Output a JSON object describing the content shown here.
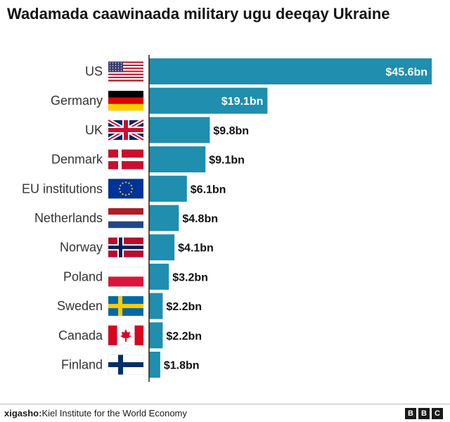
{
  "title": "Wadamada caawinaada military ugu deeqay Ukraine",
  "source": {
    "label": "xigasho:",
    "text": "Kiel Institute for the World Economy"
  },
  "logo": [
    "B",
    "B",
    "C"
  ],
  "colors": {
    "bar": "#1f8eaf",
    "label_inside": "#ffffff",
    "label_outside": "#111111",
    "axis": "#222222"
  },
  "chart_data": {
    "type": "bar",
    "orientation": "horizontal",
    "categories": [
      "US",
      "Germany",
      "UK",
      "Denmark",
      "EU institutions",
      "Netherlands",
      "Norway",
      "Poland",
      "Sweden",
      "Canada",
      "Finland"
    ],
    "values": [
      45.6,
      19.1,
      9.8,
      9.1,
      6.1,
      4.8,
      4.1,
      3.2,
      2.2,
      2.2,
      1.8
    ],
    "value_labels": [
      "$45.6bn",
      "$19.1bn",
      "$9.8bn",
      "$9.1bn",
      "$6.1bn",
      "$4.8bn",
      "$4.1bn",
      "$3.2bn",
      "$2.2bn",
      "$2.2bn",
      "$1.8bn"
    ],
    "flags": [
      "us-flag-icon",
      "germany-flag-icon",
      "uk-flag-icon",
      "denmark-flag-icon",
      "eu-flag-icon",
      "netherlands-flag-icon",
      "norway-flag-icon",
      "poland-flag-icon",
      "sweden-flag-icon",
      "canada-flag-icon",
      "finland-flag-icon"
    ],
    "title": "Wadamada caawinaada military ugu deeqay Ukraine",
    "xlabel": "",
    "ylabel": "",
    "xlim": [
      0,
      45.6
    ],
    "grid": false,
    "legend": "none"
  }
}
